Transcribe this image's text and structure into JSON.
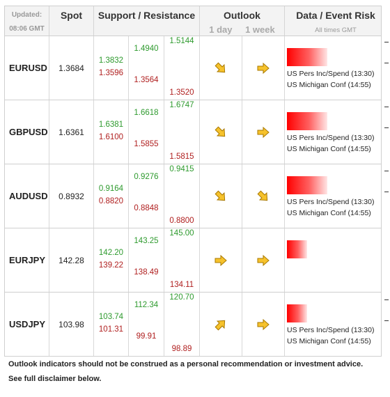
{
  "header": {
    "updated_label": "Updated:",
    "updated_time": "08:06 GMT",
    "spot": "Spot",
    "support_resistance": "Support / Resistance",
    "outlook": "Outlook",
    "outlook_1day": "1 day",
    "outlook_1week": "1 week",
    "data_event_risk": "Data / Event Risk",
    "all_times": "All times GMT"
  },
  "rows": [
    {
      "pair": "EURUSD",
      "spot": "1.3684",
      "s1": "1.3832",
      "s1b": "1.3596",
      "s2": "1.4940",
      "s2b": "1.3564",
      "s3": "1.5144",
      "s3b": "1.3520",
      "outlook_1day": "down-right",
      "outlook_1week": "right",
      "risk_level": 0.8,
      "events": [
        "US Pers Inc/Spend (13:30)",
        "US Michigan Conf (14:55)"
      ]
    },
    {
      "pair": "GBPUSD",
      "spot": "1.6361",
      "s1": "1.6381",
      "s1b": "1.6100",
      "s2": "1.6618",
      "s2b": "1.5855",
      "s3": "1.6747",
      "s3b": "1.5815",
      "outlook_1day": "down-right",
      "outlook_1week": "right",
      "risk_level": 0.8,
      "events": [
        "US Pers Inc/Spend (13:30)",
        "US Michigan Conf (14:55)"
      ]
    },
    {
      "pair": "AUDUSD",
      "spot": "0.8932",
      "s1": "0.9164",
      "s1b": "0.8820",
      "s2": "0.9276",
      "s2b": "0.8848",
      "s3": "0.9415",
      "s3b": "0.8800",
      "outlook_1day": "down-right",
      "outlook_1week": "down-right",
      "risk_level": 0.8,
      "events": [
        "US Pers Inc/Spend (13:30)",
        "US Michigan Conf (14:55)"
      ]
    },
    {
      "pair": "EURJPY",
      "spot": "142.28",
      "s1": "142.20",
      "s1b": "139.22",
      "s2": "143.25",
      "s2b": "138.49",
      "s3": "145.00",
      "s3b": "134.11",
      "outlook_1day": "right",
      "outlook_1week": "right",
      "risk_level": 0.4,
      "events": [
        "",
        ""
      ]
    },
    {
      "pair": "USDJPY",
      "spot": "103.98",
      "s1": "103.74",
      "s1b": "101.31",
      "s2": "112.34",
      "s2b": "99.91",
      "s3": "120.70",
      "s3b": "98.89",
      "outlook_1day": "up-right",
      "outlook_1week": "right",
      "risk_level": 0.4,
      "events": [
        "US Pers Inc/Spend (13:30)",
        "US Michigan Conf (14:55)"
      ]
    }
  ],
  "footer": {
    "line1": "Outlook indicators should not be construed as a personal recommendation or investment advice.",
    "line2": "See full disclaimer below."
  },
  "colors": {
    "support": "#2e9a2e",
    "resistance": "#b02020",
    "arrow_fill": "#f6c22c",
    "arrow_stroke": "#a87800"
  }
}
